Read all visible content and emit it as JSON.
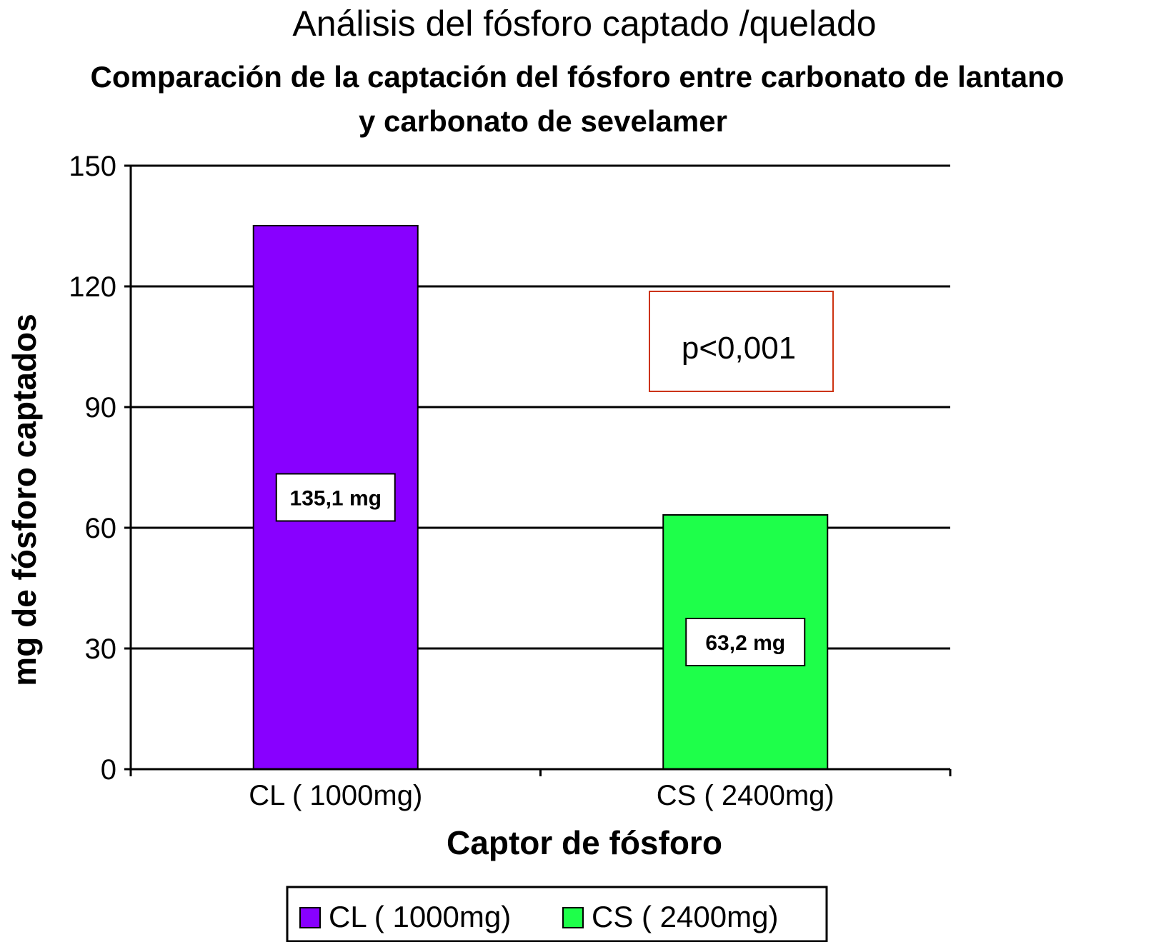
{
  "chart_data": {
    "type": "bar",
    "title": "Análisis del fósforo captado /quelado",
    "subtitle": [
      "Comparación de la captación del fósforo entre carbonato de lantano",
      "y carbonato de sevelamer"
    ],
    "xlabel": "Captor de fósforo",
    "ylabel": "mg de fósforo captados",
    "ylim": [
      0,
      150
    ],
    "yticks": [
      "0",
      "30",
      "60",
      "90",
      "120",
      "150"
    ],
    "categories": [
      "CL ( 1000mg)",
      "CS ( 2400mg)"
    ],
    "values": [
      135.1,
      63.2
    ],
    "data_labels": [
      "135,1 mg",
      "63,2 mg"
    ],
    "colors": [
      "#8800ff",
      "#1eff4a"
    ],
    "annotation": "p<0,001",
    "annotation_border_color": "#cc3311",
    "grid": true,
    "legend": {
      "placement": "bottom-center",
      "entries": [
        "CL ( 1000mg)",
        "CS ( 2400mg)"
      ]
    }
  }
}
